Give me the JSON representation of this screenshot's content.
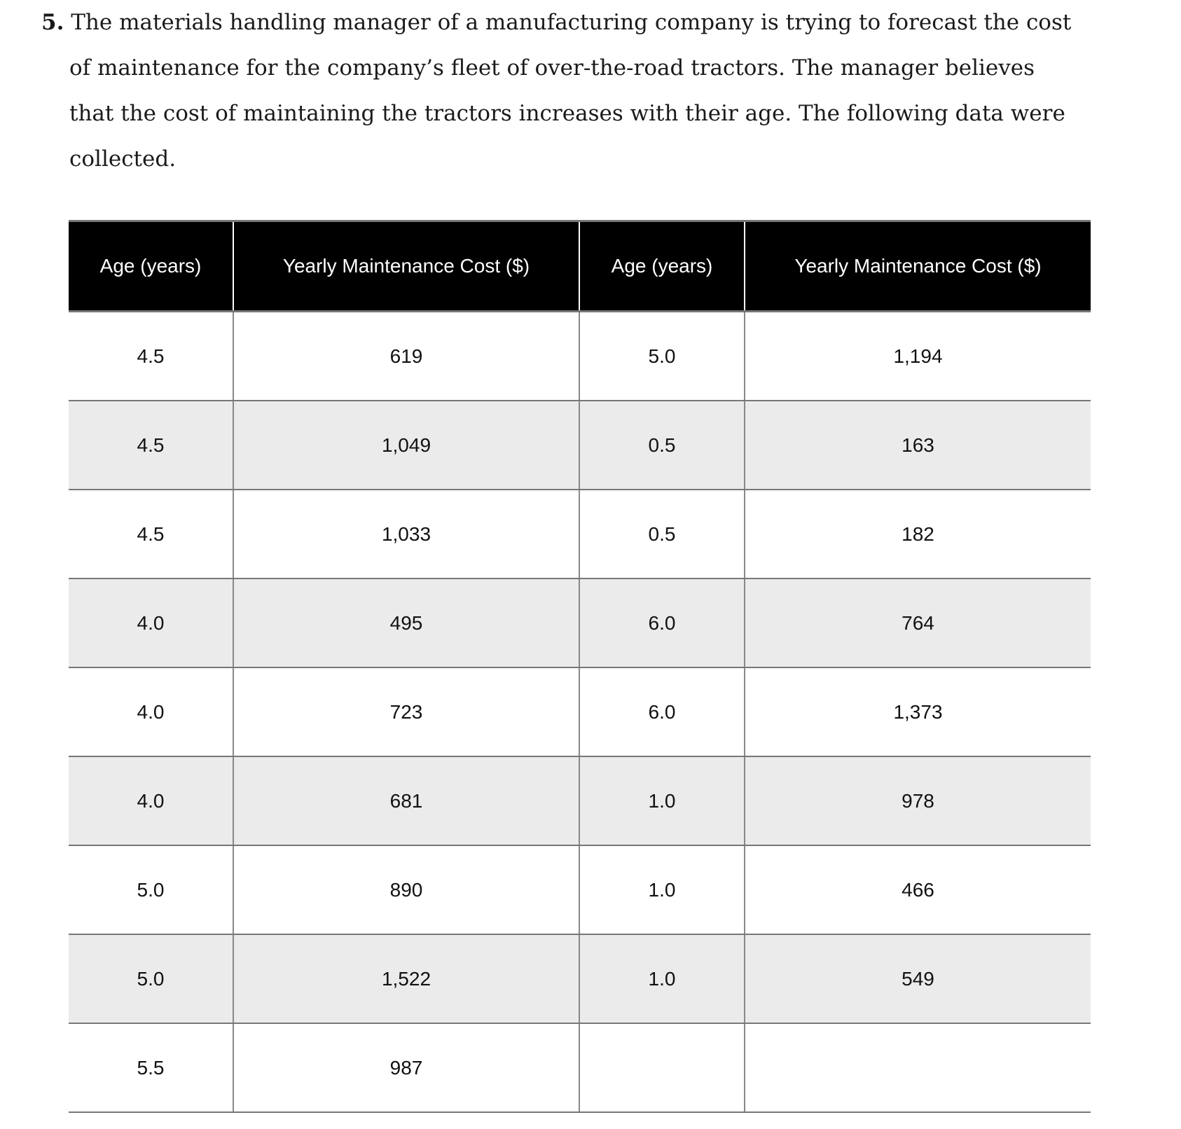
{
  "question": {
    "number": "5.",
    "lines": [
      "The materials handling manager of a manufacturing company is trying to forecast the cost",
      "of maintenance for the company’s fleet of over-the-road tractors. The manager believes",
      "that the cost of maintaining the tractors increases with their age. The following data were",
      "collected."
    ]
  },
  "table": {
    "headers": [
      "Age (years)",
      "Yearly Maintenance Cost ($)",
      "Age (years)",
      "Yearly Maintenance Cost ($)"
    ],
    "rows": [
      [
        "4.5",
        "619",
        "5.0",
        "1,194"
      ],
      [
        "4.5",
        "1,049",
        "0.5",
        "163"
      ],
      [
        "4.5",
        "1,033",
        "0.5",
        "182"
      ],
      [
        "4.0",
        "495",
        "6.0",
        "764"
      ],
      [
        "4.0",
        "723",
        "6.0",
        "1,373"
      ],
      [
        "4.0",
        "681",
        "1.0",
        "978"
      ],
      [
        "5.0",
        "890",
        "1.0",
        "466"
      ],
      [
        "5.0",
        "1,522",
        "1.0",
        "549"
      ],
      [
        "5.5",
        "987",
        "",
        ""
      ]
    ]
  }
}
